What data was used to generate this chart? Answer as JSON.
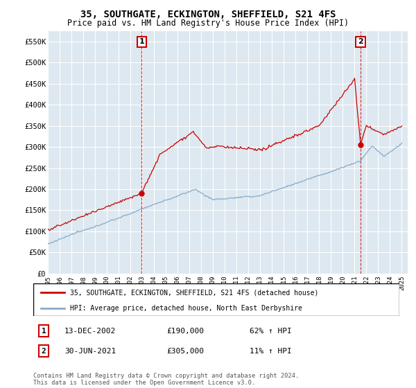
{
  "title": "35, SOUTHGATE, ECKINGTON, SHEFFIELD, S21 4FS",
  "subtitle": "Price paid vs. HM Land Registry's House Price Index (HPI)",
  "title_fontsize": 10,
  "subtitle_fontsize": 8.5,
  "ylabel_ticks": [
    "£0",
    "£50K",
    "£100K",
    "£150K",
    "£200K",
    "£250K",
    "£300K",
    "£350K",
    "£400K",
    "£450K",
    "£500K",
    "£550K"
  ],
  "ytick_values": [
    0,
    50000,
    100000,
    150000,
    200000,
    250000,
    300000,
    350000,
    400000,
    450000,
    500000,
    550000
  ],
  "ylim": [
    0,
    575000
  ],
  "xlim_start": 1995,
  "xlim_end": 2025.5,
  "xtick_years": [
    1995,
    1996,
    1997,
    1998,
    1999,
    2000,
    2001,
    2002,
    2003,
    2004,
    2005,
    2006,
    2007,
    2008,
    2009,
    2010,
    2011,
    2012,
    2013,
    2014,
    2015,
    2016,
    2017,
    2018,
    2019,
    2020,
    2021,
    2022,
    2023,
    2024,
    2025
  ],
  "sale1_x": 2002.95,
  "sale1_y": 190000,
  "sale1_label": "1",
  "sale2_x": 2021.5,
  "sale2_y": 305000,
  "sale2_label": "2",
  "sale1_date": "13-DEC-2002",
  "sale1_price": "£190,000",
  "sale1_hpi": "62% ↑ HPI",
  "sale2_date": "30-JUN-2021",
  "sale2_price": "£305,000",
  "sale2_hpi": "11% ↑ HPI",
  "line1_color": "#cc0000",
  "line2_color": "#88aacc",
  "vline_color": "#cc0000",
  "plot_bg_color": "#dde8f0",
  "background_color": "#ffffff",
  "grid_color": "#ffffff",
  "legend1_label": "35, SOUTHGATE, ECKINGTON, SHEFFIELD, S21 4FS (detached house)",
  "legend2_label": "HPI: Average price, detached house, North East Derbyshire",
  "footnote": "Contains HM Land Registry data © Crown copyright and database right 2024.\nThis data is licensed under the Open Government Licence v3.0."
}
